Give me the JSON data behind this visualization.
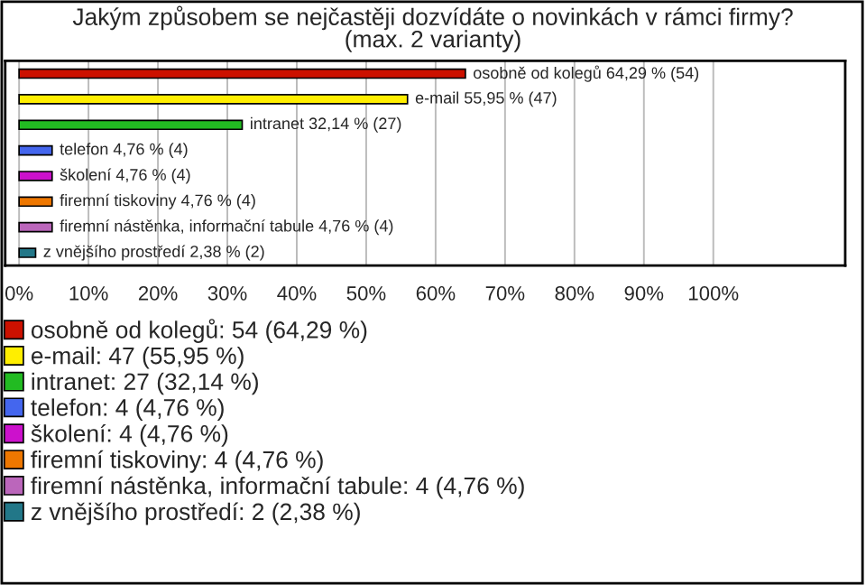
{
  "chart_data": {
    "type": "bar",
    "orientation": "horizontal",
    "title": "Jakým způsobem se nejčastěji dozvídáte o novinkách v rámci firmy?\n(max. 2 varianty)",
    "categories": [
      null,
      null,
      null,
      null,
      null,
      null,
      null,
      null
    ],
    "series": [
      {
        "name": "osobně od kolegů: 54 (64,29 %)",
        "color": "#cc1100",
        "values": [
          64.29,
          null,
          null,
          null,
          null,
          null,
          null,
          null
        ],
        "value_labels": [
          "osobně od kolegů 64,29 % (54)",
          null,
          null,
          null,
          null,
          null,
          null,
          null
        ]
      },
      {
        "name": "e-mail: 47 (55,95 %)",
        "color": "#ffee00",
        "values": [
          null,
          55.95,
          null,
          null,
          null,
          null,
          null,
          null
        ],
        "value_labels": [
          null,
          "e-mail 55,95 % (47)",
          null,
          null,
          null,
          null,
          null,
          null
        ]
      },
      {
        "name": "intranet: 27 (32,14 %)",
        "color": "#22bb22",
        "values": [
          null,
          null,
          32.14,
          null,
          null,
          null,
          null,
          null
        ],
        "value_labels": [
          null,
          null,
          "intranet 32,14 % (27)",
          null,
          null,
          null,
          null,
          null
        ]
      },
      {
        "name": "telefon: 4 (4,76 %)",
        "color": "#4466ee",
        "values": [
          null,
          null,
          null,
          4.76,
          null,
          null,
          null,
          null
        ],
        "value_labels": [
          null,
          null,
          null,
          "telefon 4,76 % (4)",
          null,
          null,
          null,
          null
        ]
      },
      {
        "name": "školení: 4 (4,76 %)",
        "color": "#cc11cc",
        "values": [
          null,
          null,
          null,
          null,
          4.76,
          null,
          null,
          null
        ],
        "value_labels": [
          null,
          null,
          null,
          null,
          "školení 4,76 % (4)",
          null,
          null,
          null
        ]
      },
      {
        "name": "firemní tiskoviny: 4 (4,76 %)",
        "color": "#ee7700",
        "values": [
          null,
          null,
          null,
          null,
          null,
          4.76,
          null,
          null
        ],
        "value_labels": [
          null,
          null,
          null,
          null,
          null,
          "firemní tiskoviny 4,76 % (4)",
          null,
          null
        ]
      },
      {
        "name": "firemní nástěnka, informační tabule: 4 (4,76 %)",
        "color": "#bb66bb",
        "values": [
          null,
          null,
          null,
          null,
          null,
          null,
          4.76,
          null
        ],
        "value_labels": [
          null,
          null,
          null,
          null,
          null,
          null,
          "firemní nástěnka, informační tabule 4,76 % (4)",
          null
        ]
      },
      {
        "name": "z vnějšího prostředí: 2 (2,38 %)",
        "color": "#227788",
        "values": [
          null,
          null,
          null,
          null,
          null,
          null,
          null,
          2.38
        ],
        "value_labels": [
          null,
          null,
          null,
          null,
          null,
          null,
          null,
          "z vnějšího prostředí 2,38 % (2)"
        ]
      }
    ],
    "xlim": [
      -2,
      119
    ],
    "xticks": [
      {
        "value": 0,
        "label": "0%"
      },
      {
        "value": 10,
        "label": "10%"
      },
      {
        "value": 20,
        "label": "20%"
      },
      {
        "value": 30,
        "label": "30%"
      },
      {
        "value": 40,
        "label": "40%"
      },
      {
        "value": 50,
        "label": "50%"
      },
      {
        "value": 60,
        "label": "60%"
      },
      {
        "value": 70,
        "label": "70%"
      },
      {
        "value": 80,
        "label": "80%"
      },
      {
        "value": 90,
        "label": "90%"
      },
      {
        "value": 100,
        "label": "100%"
      }
    ],
    "grid": "x",
    "legend": "bottom"
  }
}
